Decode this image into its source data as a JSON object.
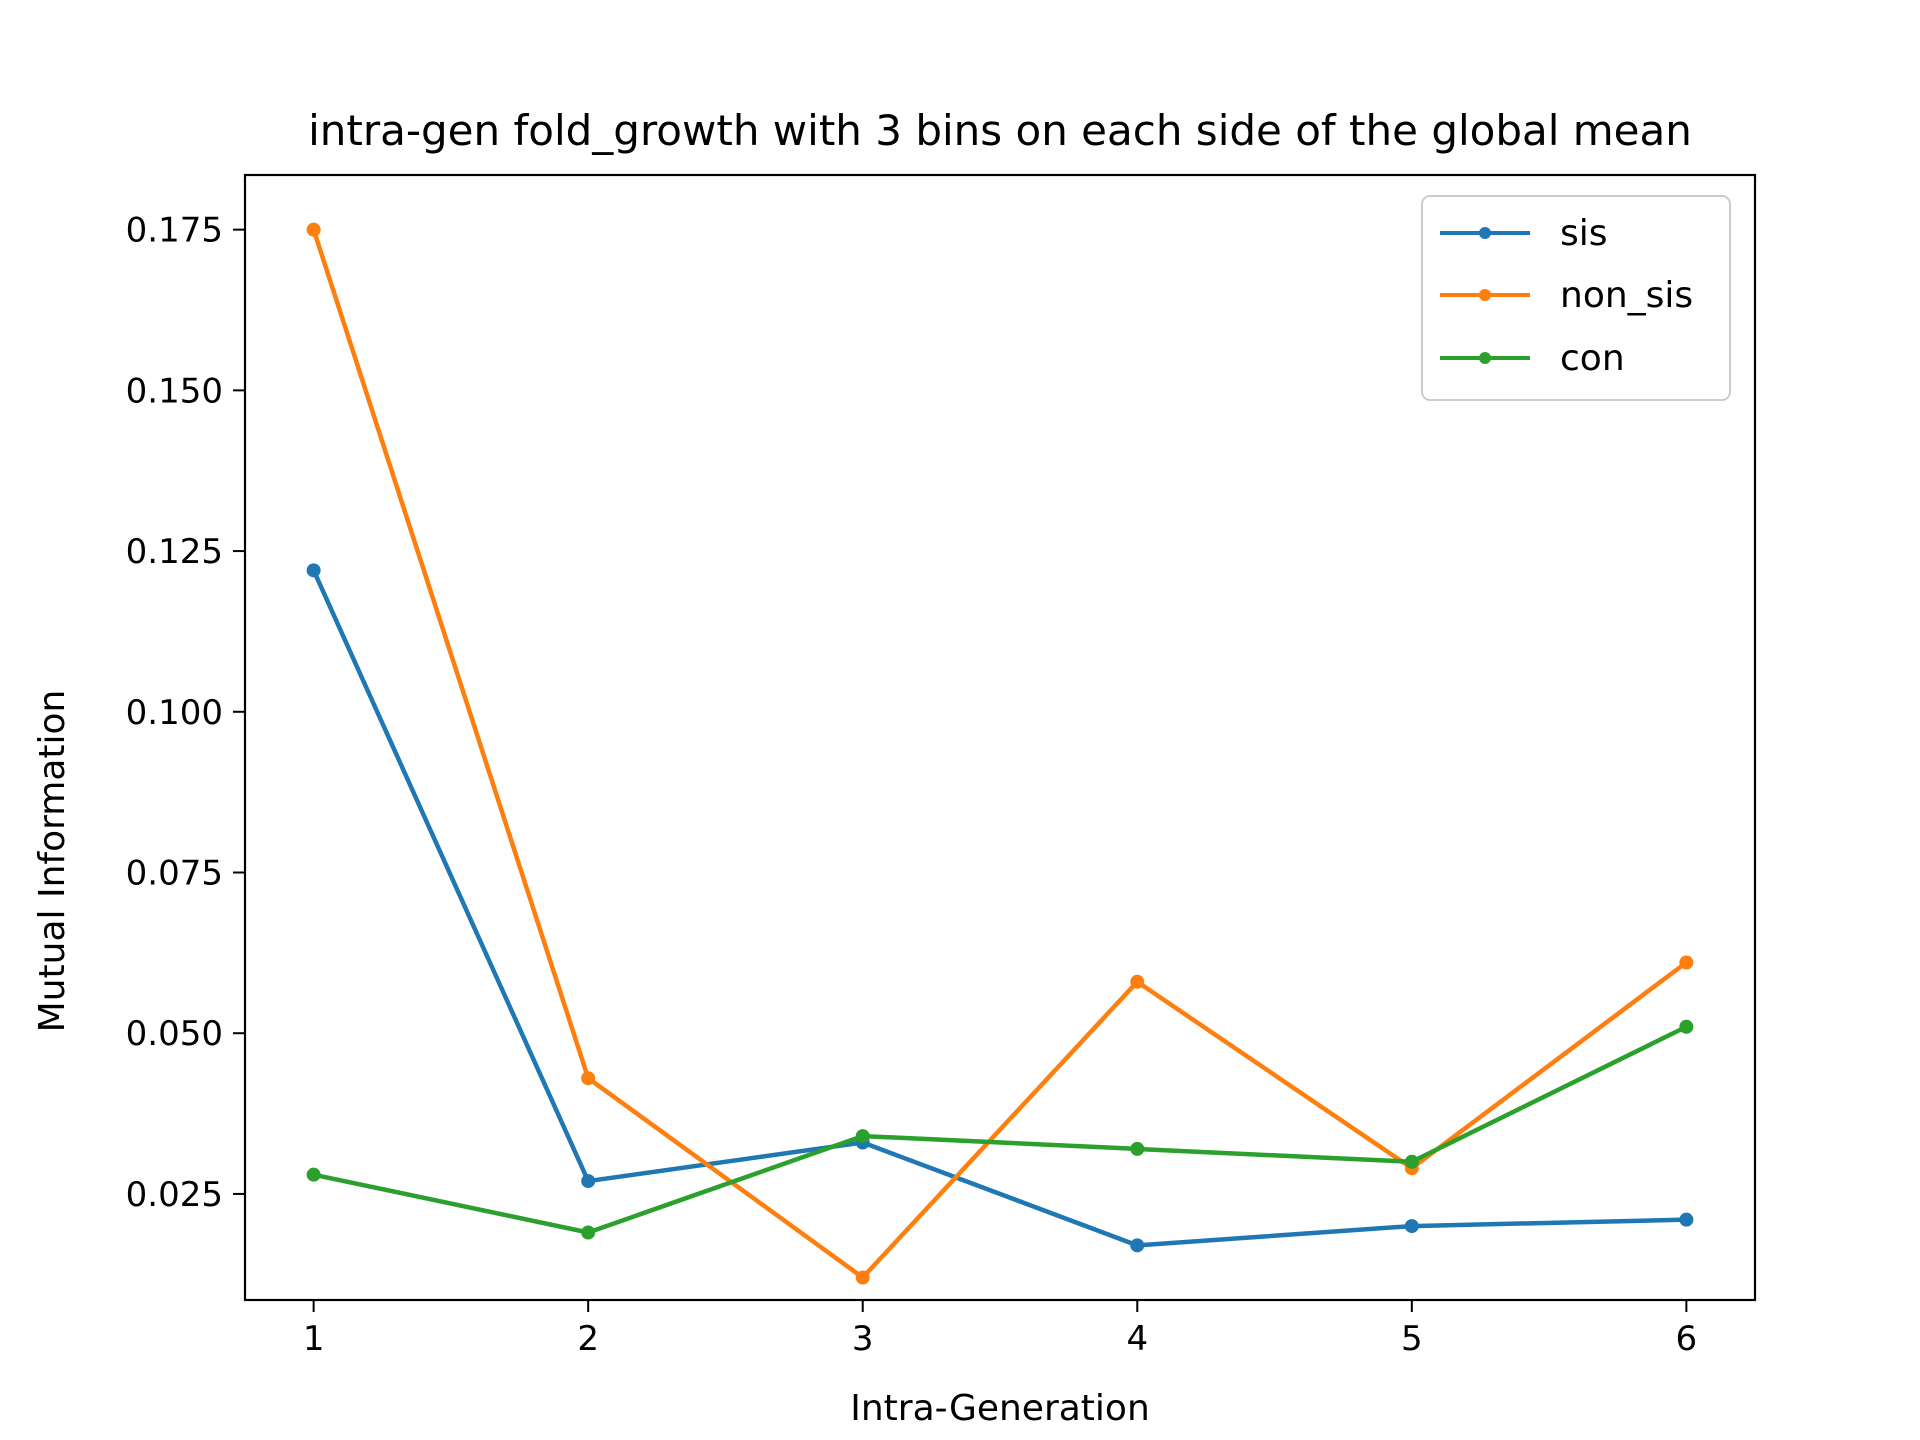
{
  "chart_data": {
    "type": "line",
    "title": "intra-gen fold_growth with 3 bins on each side of the global mean",
    "xlabel": "Intra-Generation",
    "ylabel": "Mutual Information",
    "x": [
      1,
      2,
      3,
      4,
      5,
      6
    ],
    "xticks": [
      1,
      2,
      3,
      4,
      5,
      6
    ],
    "yticks": [
      0.025,
      0.05,
      0.075,
      0.1,
      0.125,
      0.15,
      0.175
    ],
    "ytick_labels": [
      "0.025",
      "0.050",
      "0.075",
      "0.100",
      "0.125",
      "0.150",
      "0.175"
    ],
    "xlim": [
      0.75,
      6.25
    ],
    "ylim": [
      0.0085,
      0.1835
    ],
    "grid": false,
    "legend_position": "top-right",
    "series": [
      {
        "name": "sis",
        "color": "#1f77b4",
        "marker": "point",
        "values": [
          0.122,
          0.027,
          0.033,
          0.017,
          0.02,
          0.021
        ]
      },
      {
        "name": "non_sis",
        "color": "#ff7f0e",
        "marker": "point",
        "values": [
          0.175,
          0.043,
          0.012,
          0.058,
          0.029,
          0.061
        ]
      },
      {
        "name": "con",
        "color": "#2ca02c",
        "marker": "point",
        "values": [
          0.028,
          0.019,
          0.034,
          0.032,
          0.03,
          0.051
        ]
      }
    ]
  }
}
